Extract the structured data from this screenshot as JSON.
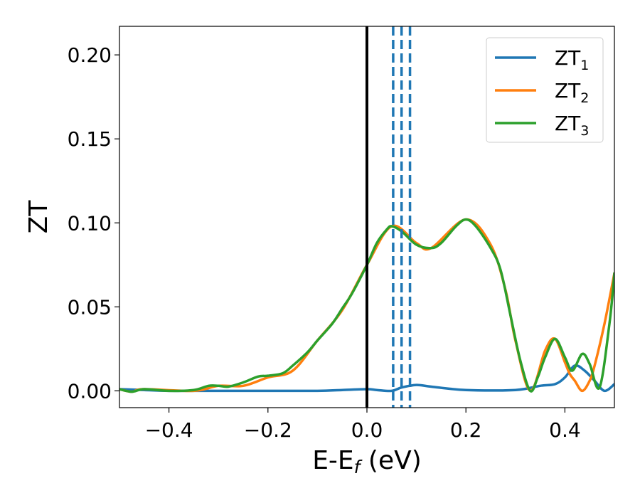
{
  "chart_data": {
    "type": "line",
    "xlabel": "E-E",
    "xlabel_sub": "f",
    "xlabel_unit": " (eV)",
    "ylabel": "ZT",
    "xlim": [
      -0.5,
      0.5
    ],
    "ylim": [
      -0.01,
      0.217
    ],
    "xticks": [
      -0.4,
      -0.2,
      0.0,
      0.2,
      0.4
    ],
    "xtick_labels": [
      "−0.4",
      "−0.2",
      "0.0",
      "0.2",
      "0.4"
    ],
    "yticks": [
      0.0,
      0.05,
      0.1,
      0.15,
      0.2
    ],
    "ytick_labels": [
      "0.00",
      "0.05",
      "0.10",
      "0.15",
      "0.20"
    ],
    "legend_position": "top-right",
    "vlines": [
      {
        "x": 0.0,
        "color": "#000000",
        "style": "solid"
      },
      {
        "x": 0.053,
        "color": "#1f77b4",
        "style": "dashed"
      },
      {
        "x": 0.07,
        "color": "#1f77b4",
        "style": "dashed"
      },
      {
        "x": 0.087,
        "color": "#1f77b4",
        "style": "dashed"
      }
    ],
    "series": [
      {
        "name": "ZT",
        "sub": "1",
        "color": "#1f77b4",
        "x": [
          -0.5,
          -0.45,
          -0.4,
          -0.3,
          -0.2,
          -0.1,
          -0.05,
          0.0,
          0.02,
          0.05,
          0.07,
          0.1,
          0.13,
          0.2,
          0.3,
          0.35,
          0.38,
          0.4,
          0.42,
          0.44,
          0.46,
          0.48,
          0.5
        ],
        "y": [
          0.001,
          0.0005,
          0.0,
          0.0,
          0.0,
          0.0,
          0.0005,
          0.001,
          0.0005,
          0.0,
          0.002,
          0.0035,
          0.0025,
          0.0005,
          0.0005,
          0.003,
          0.004,
          0.008,
          0.015,
          0.012,
          0.006,
          0.0,
          0.004
        ]
      },
      {
        "name": "ZT",
        "sub": "2",
        "color": "#ff7f0e",
        "x": [
          -0.5,
          -0.475,
          -0.45,
          -0.35,
          -0.3,
          -0.25,
          -0.2,
          -0.15,
          -0.1,
          -0.05,
          0.0,
          0.05,
          0.1,
          0.13,
          0.2,
          0.25,
          0.28,
          0.3,
          0.33,
          0.36,
          0.38,
          0.4,
          0.41,
          0.42,
          0.435,
          0.45,
          0.46,
          0.48,
          0.5
        ],
        "y": [
          0.001,
          -0.0005,
          0.001,
          0.0,
          0.003,
          0.003,
          0.008,
          0.012,
          0.03,
          0.048,
          0.075,
          0.098,
          0.088,
          0.085,
          0.102,
          0.087,
          0.06,
          0.03,
          0.0,
          0.024,
          0.031,
          0.017,
          0.01,
          0.006,
          0.0,
          0.006,
          0.015,
          0.04,
          0.07
        ]
      },
      {
        "name": "ZT",
        "sub": "3",
        "color": "#2ca02c",
        "x": [
          -0.5,
          -0.475,
          -0.45,
          -0.4,
          -0.35,
          -0.32,
          -0.3,
          -0.28,
          -0.25,
          -0.22,
          -0.2,
          -0.17,
          -0.15,
          -0.12,
          -0.1,
          -0.07,
          -0.05,
          -0.03,
          0.0,
          0.02,
          0.04,
          0.05,
          0.07,
          0.1,
          0.13,
          0.15,
          0.18,
          0.2,
          0.22,
          0.25,
          0.27,
          0.29,
          0.31,
          0.33,
          0.345,
          0.36,
          0.38,
          0.4,
          0.415,
          0.435,
          0.45,
          0.47,
          0.49,
          0.5
        ],
        "y": [
          0.001,
          -0.0005,
          0.001,
          0.0,
          0.0005,
          0.003,
          0.003,
          0.0025,
          0.005,
          0.0085,
          0.009,
          0.0105,
          0.015,
          0.023,
          0.03,
          0.04,
          0.049,
          0.058,
          0.075,
          0.088,
          0.096,
          0.098,
          0.095,
          0.087,
          0.085,
          0.088,
          0.098,
          0.102,
          0.098,
          0.085,
          0.072,
          0.045,
          0.018,
          0.0,
          0.008,
          0.02,
          0.031,
          0.02,
          0.012,
          0.022,
          0.016,
          0.002,
          0.04,
          0.07
        ]
      }
    ]
  }
}
